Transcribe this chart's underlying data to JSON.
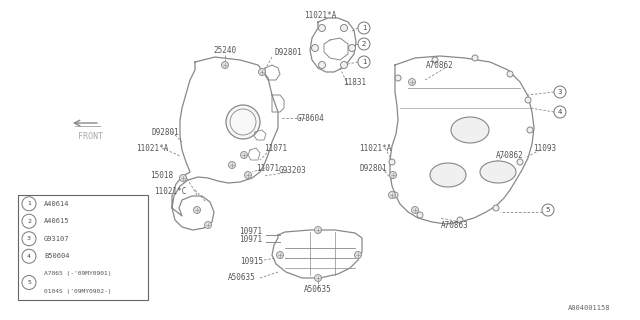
{
  "bg_color": "#ffffff",
  "line_color": "#888888",
  "text_color": "#555555",
  "fig_width": 6.4,
  "fig_height": 3.2,
  "dpi": 100,
  "watermark": "A004001158",
  "front_label": "FRONT",
  "legend_items": [
    {
      "num": "1",
      "code": "A40614"
    },
    {
      "num": "2",
      "code": "A40615"
    },
    {
      "num": "3",
      "code": "G93107"
    },
    {
      "num": "4",
      "code": "B50604"
    },
    {
      "num": "5",
      "code": "A7065 (-'09MY0901)",
      "code2": "0104S ('09MY0902-)"
    }
  ]
}
